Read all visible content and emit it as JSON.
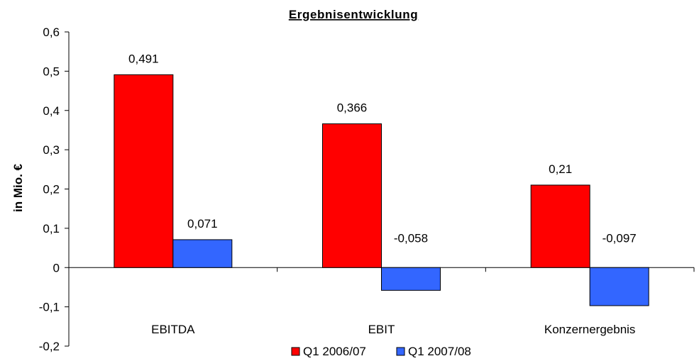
{
  "chart_data": {
    "type": "bar",
    "title": "Ergebnisentwicklung",
    "ylabel": "in Mio. €",
    "xlabel": "",
    "categories": [
      "EBITDA",
      "EBIT",
      "Konzernergebnis"
    ],
    "series": [
      {
        "name": "Q1 2006/07",
        "color": "#ff0000",
        "values": [
          0.491,
          0.366,
          0.21
        ],
        "labels": [
          "0,491",
          "0,366",
          "0,21"
        ]
      },
      {
        "name": "Q1 2007/08",
        "color": "#3366ff",
        "values": [
          0.071,
          -0.058,
          -0.097
        ],
        "labels": [
          "0,071",
          "-0,058",
          "-0,097"
        ]
      }
    ],
    "ylim": [
      -0.2,
      0.6
    ],
    "yticks": [
      -0.2,
      -0.1,
      0,
      0.1,
      0.2,
      0.3,
      0.4,
      0.5,
      0.6
    ],
    "ytick_labels": [
      "-0,2",
      "-0,1",
      "0",
      "0,1",
      "0,2",
      "0,3",
      "0,4",
      "0,5",
      "0,6"
    ],
    "grid": false,
    "legend_position": "bottom"
  }
}
